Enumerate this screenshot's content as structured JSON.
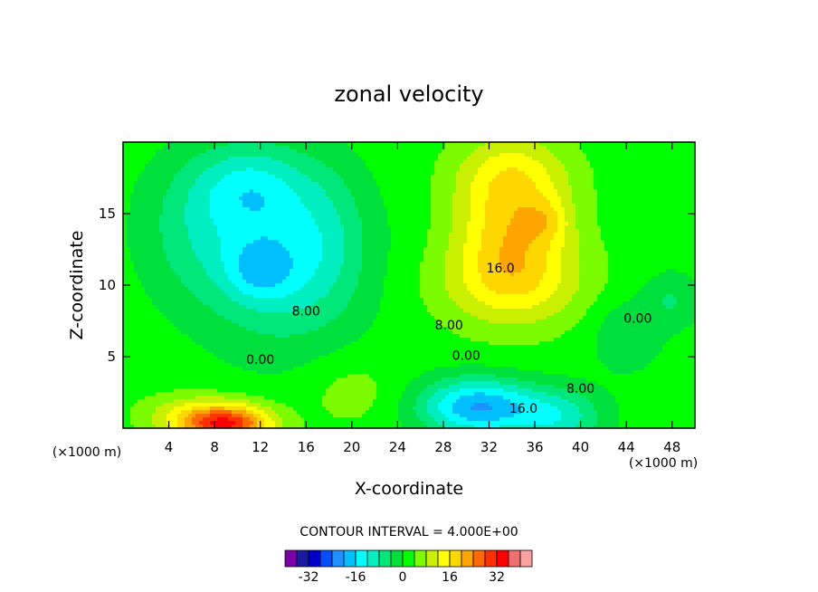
{
  "chart_data": {
    "type": "heatmap",
    "title": "zonal velocity",
    "xlabel": "X-coordinate",
    "ylabel": "Z-coordinate",
    "x_unit_left": "(×1000 m)",
    "x_unit_right": "(×1000 m)",
    "x_ticks": [
      4,
      8,
      12,
      16,
      20,
      24,
      28,
      32,
      36,
      40,
      44,
      48
    ],
    "y_ticks": [
      5,
      10,
      15
    ],
    "xlim": [
      0,
      50
    ],
    "ylim": [
      0,
      20
    ],
    "contour_interval_text": "CONTOUR INTERVAL = 4.000E+00",
    "contour_labels": [
      {
        "text": "16.0",
        "x": 33,
        "z": 11.2
      },
      {
        "text": "8.00",
        "x": 16,
        "z": 8.2
      },
      {
        "text": "8.00",
        "x": 28.5,
        "z": 7.2
      },
      {
        "text": "0.00",
        "x": 12,
        "z": 4.8
      },
      {
        "text": "0.00",
        "x": 30,
        "z": 5.1
      },
      {
        "text": "0.00",
        "x": 45,
        "z": 7.7
      },
      {
        "text": "8.00",
        "x": 40,
        "z": 2.8
      },
      {
        "text": "16.0",
        "x": 35,
        "z": 1.4
      }
    ],
    "legend_levels": [
      -36,
      -32,
      -28,
      -24,
      -20,
      -16,
      -12,
      -8,
      -4,
      0,
      4,
      8,
      12,
      16,
      20,
      24,
      28,
      32,
      36
    ],
    "legend_tick_labels": [
      "-32",
      "-16",
      "0",
      "16",
      "32"
    ],
    "palette": [
      "#7b00a8",
      "#1a1aa0",
      "#0000cd",
      "#0050ff",
      "#1e90ff",
      "#00bfff",
      "#00ffff",
      "#00eec0",
      "#00e87a",
      "#00e03c",
      "#00ff00",
      "#7cfc00",
      "#c8f000",
      "#ffff00",
      "#ffd700",
      "#ffa500",
      "#ff6a00",
      "#ff3000",
      "#ff0000",
      "#f07070",
      "#ffa0a0"
    ],
    "features": [
      {
        "x": 14,
        "z": 12,
        "value": -14,
        "sx": 7,
        "sz": 6
      },
      {
        "x": 11,
        "z": 17,
        "value": -10,
        "sx": 5,
        "sz": 3
      },
      {
        "x": 12,
        "z": 11,
        "value": -8,
        "sx": 3,
        "sz": 2
      },
      {
        "x": 6,
        "z": 14,
        "value": -6,
        "sx": 5,
        "sz": 5
      },
      {
        "x": 34,
        "z": 14,
        "value": 16,
        "sx": 5,
        "sz": 5
      },
      {
        "x": 34,
        "z": 10,
        "value": 8,
        "sx": 7,
        "sz": 3
      },
      {
        "x": 37,
        "z": 14.5,
        "value": 6,
        "sx": 2,
        "sz": 1.5
      },
      {
        "x": 34,
        "z": 18,
        "value": 6,
        "sx": 5,
        "sz": 2.5
      },
      {
        "x": 9,
        "z": 0.3,
        "value": 30,
        "sx": 4,
        "sz": 1.4
      },
      {
        "x": 5,
        "z": 1.0,
        "value": 6,
        "sx": 4,
        "sz": 1.5
      },
      {
        "x": 31,
        "z": 1.5,
        "value": -22,
        "sx": 5,
        "sz": 2
      },
      {
        "x": 38,
        "z": 0.8,
        "value": -12,
        "sx": 4,
        "sz": 2
      },
      {
        "x": 44,
        "z": 6.5,
        "value": -6,
        "sx": 3,
        "sz": 2.5
      },
      {
        "x": 48,
        "z": 9,
        "value": -6,
        "sx": 2.5,
        "sz": 2
      },
      {
        "x": 20,
        "z": 2.5,
        "value": 4,
        "sx": 4,
        "sz": 2.5
      },
      {
        "x": 18,
        "z": 14,
        "value": -3,
        "sx": 3,
        "sz": 5
      }
    ],
    "background_value": 2,
    "grid": false
  }
}
